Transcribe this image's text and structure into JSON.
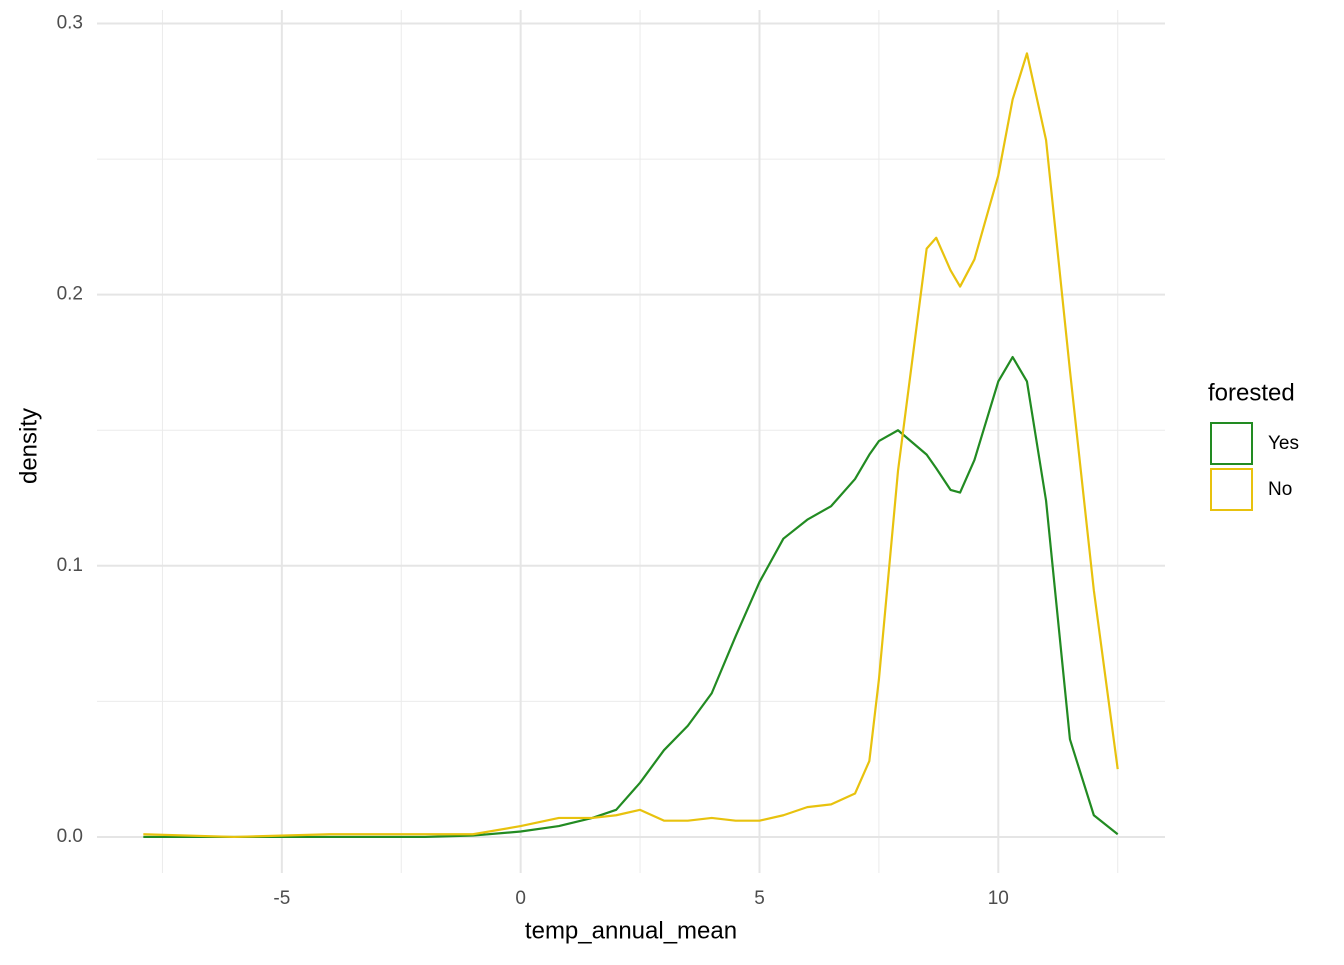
{
  "chart_data": {
    "type": "density",
    "xlabel": "temp_annual_mean",
    "ylabel": "density",
    "x": [
      -7.9,
      -6,
      -4,
      -3,
      -2,
      -1,
      0,
      0.8,
      1.5,
      2,
      2.5,
      3,
      3.5,
      4,
      4.5,
      5,
      5.5,
      6,
      6.5,
      7,
      7.3,
      7.5,
      7.9,
      8.5,
      8.7,
      9,
      9.2,
      9.5,
      10,
      10.3,
      10.6,
      11,
      11.5,
      12,
      12.5
    ],
    "series": [
      {
        "name": "Yes",
        "color": "#228b22",
        "values": [
          0,
          0,
          0,
          0,
          0,
          0.0005,
          0.002,
          0.004,
          0.007,
          0.01,
          0.02,
          0.032,
          0.041,
          0.053,
          0.074,
          0.094,
          0.11,
          0.117,
          0.122,
          0.132,
          0.141,
          0.146,
          0.15,
          0.141,
          0.136,
          0.128,
          0.127,
          0.139,
          0.168,
          0.177,
          0.168,
          0.124,
          0.036,
          0.008,
          0.001
        ]
      },
      {
        "name": "No",
        "color": "#e8c20e",
        "values": [
          0.001,
          0,
          0.001,
          0.001,
          0.001,
          0.001,
          0.004,
          0.007,
          0.007,
          0.008,
          0.01,
          0.006,
          0.006,
          0.007,
          0.006,
          0.006,
          0.008,
          0.011,
          0.012,
          0.016,
          0.028,
          0.058,
          0.135,
          0.217,
          0.221,
          0.209,
          0.203,
          0.213,
          0.244,
          0.272,
          0.289,
          0.257,
          0.172,
          0.091,
          0.025
        ]
      }
    ],
    "xlim": [
      -8.87,
      13.49
    ],
    "ylim": [
      -0.0133,
      0.305
    ],
    "xticks": [
      -5,
      0,
      5,
      10
    ],
    "yticks": [
      {
        "value": 0,
        "label": "0.0"
      },
      0.1,
      0.2,
      0.3
    ],
    "x_minor_grid": [
      -7.5,
      -2.5,
      2.5,
      7.5,
      12.5
    ],
    "y_minor_grid": [
      0.05,
      0.15,
      0.25
    ],
    "grid": true,
    "legend_title": "forested",
    "legend_position": "right"
  }
}
